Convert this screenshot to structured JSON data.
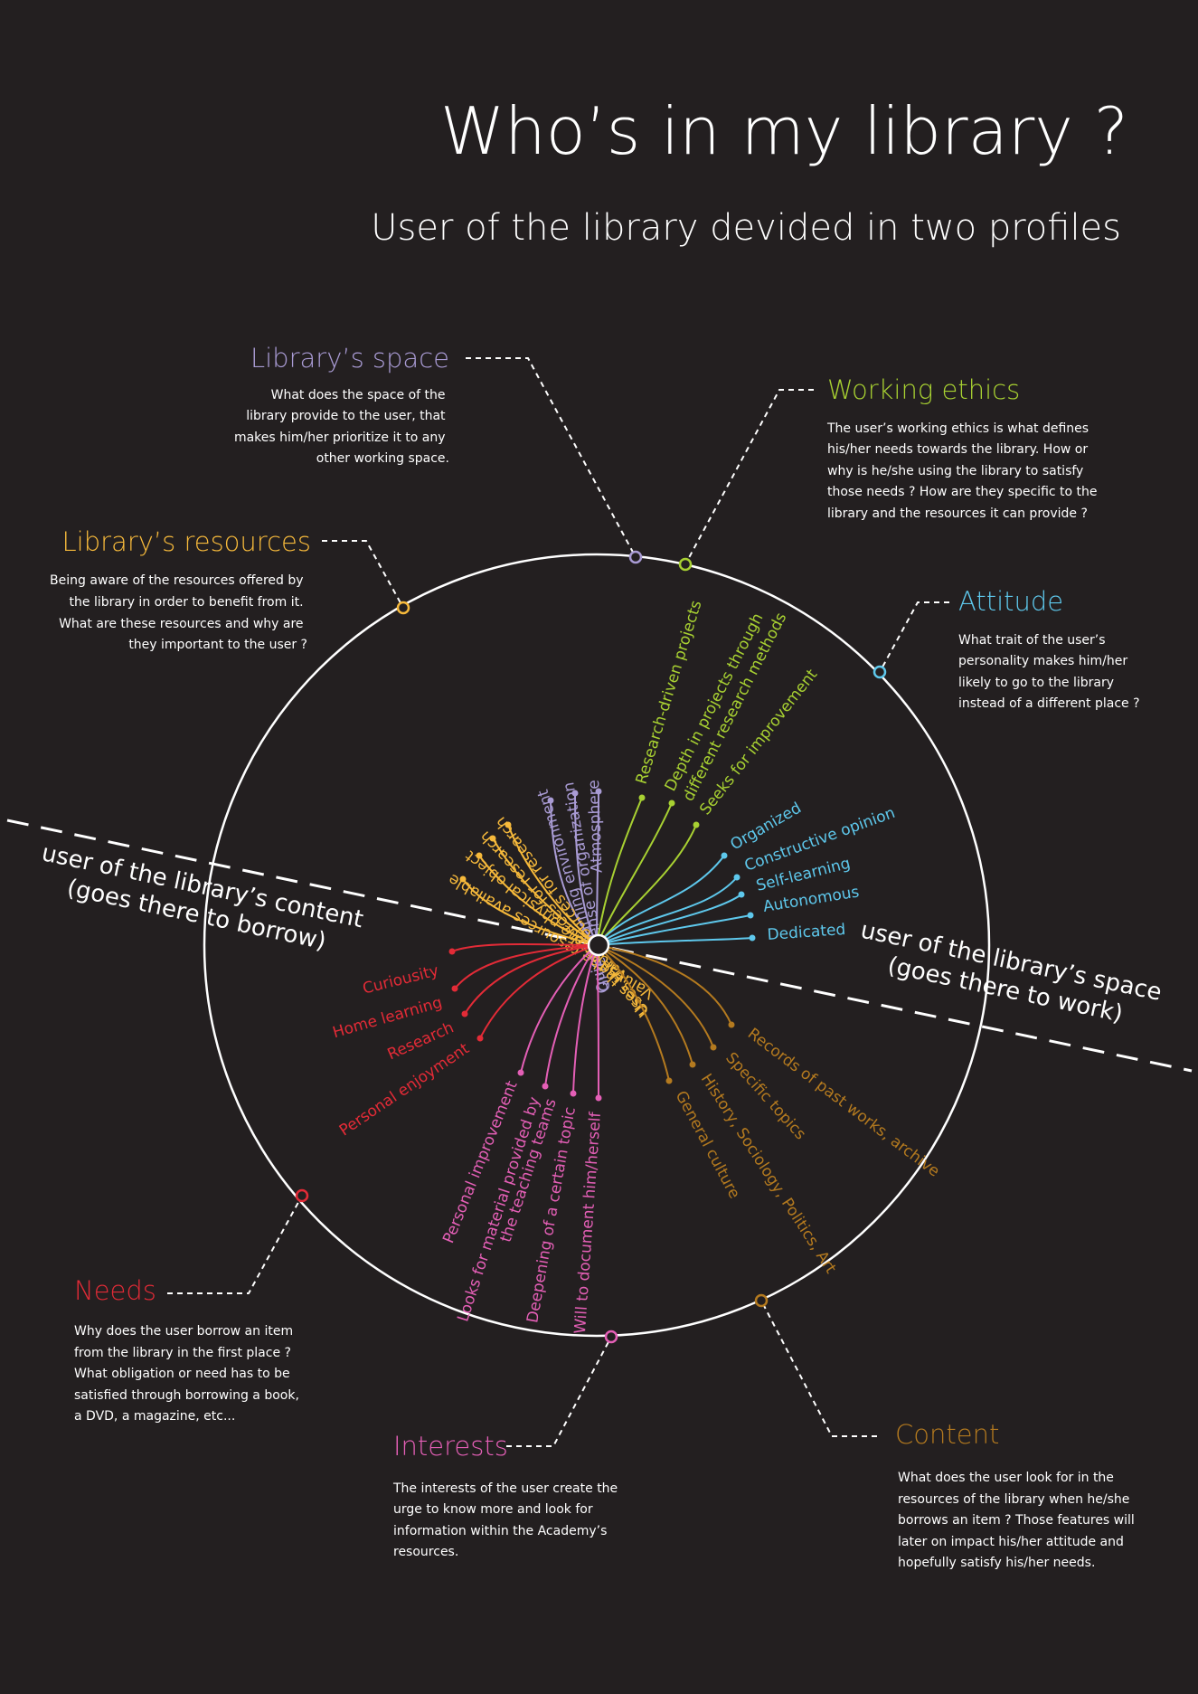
{
  "header": {
    "title": "Who’s in my library ?",
    "subtitle": "User of the library devided in two profiles"
  },
  "profiles": {
    "content": [
      "user of the library’s content",
      "(goes there to borrow)"
    ],
    "space": [
      "user of the library’s space",
      "(goes there to work)"
    ]
  },
  "categories": [
    {
      "id": "space",
      "title": "Library’s space",
      "color": "#a99bd4",
      "description": [
        "What does the space of the",
        "library provide to the user, that",
        "makes him/her prioritize it to any",
        "other working space."
      ],
      "items": [
        "Quiet learning environment",
        "Gives sense of organization",
        "Atmosphere"
      ]
    },
    {
      "id": "ethics",
      "title": "Working ethics",
      "color": "#a8d132",
      "description": [
        "The user’s working ethics is what defines",
        "his/her needs towards the library. How or",
        "why is he/she using the library to satisfy",
        "those needs ? How are they specific to the",
        "library and the resources it can provide ?"
      ],
      "items": [
        "Research-driven projects",
        "Depth in projects through",
        "different research methods",
        "Seeks for improvement"
      ]
    },
    {
      "id": "attitude",
      "title": "Attitude",
      "color": "#5ec8ec",
      "description": [
        "What trait of the user’s",
        "personality makes him/her",
        "likely to go to the library",
        "instead of a different place ?"
      ],
      "items": [
        "Organized",
        "Constructive opinion",
        "Self-learning",
        "Autonomous",
        "Dedicated"
      ]
    },
    {
      "id": "resources",
      "title": "Library’s resources",
      "color": "#f6b93b",
      "description": [
        "Being aware of the resources offered by",
        "the library in order to benefit from it.",
        "What are these resources and why are",
        "they important to the user ?"
      ],
      "items": [
        "Uses the resources for research",
        "Uses the resources for research",
        "Values the physical object",
        "Values the resources available"
      ]
    },
    {
      "id": "needs",
      "title": "Needs",
      "color": "#e32b37",
      "description": [
        "Why does the user borrow an item",
        "from the library in the first place ?",
        "What obligation or need has to be",
        "satisfied through borrowing a book,",
        "a DVD, a magazine, etc..."
      ],
      "items": [
        "Curiousity",
        "Home learning",
        "Research",
        "Personal enjoyment"
      ]
    },
    {
      "id": "interests",
      "title": "Interests",
      "color": "#e45fb6",
      "description": [
        "The interests of the user create the",
        "urge to know more and look for",
        "information within the Academy’s",
        "resources."
      ],
      "items": [
        "Personal improvement",
        "Looks for material provided by",
        "the teaching teams",
        "Deepening of a certain topic",
        "Will to document him/herself"
      ]
    },
    {
      "id": "content",
      "title": "Content",
      "color": "#b47a1f",
      "description": [
        "What does the user look for in the",
        "resources of the library  when he/she",
        "borrows an item ? Those features will",
        "later on impact his/her attitude and",
        "hopefully satisfy his/her needs."
      ],
      "items": [
        "General culture",
        "History, Sociology, Politics, Art",
        "Specific topics",
        "Records of past works, archive"
      ]
    }
  ]
}
